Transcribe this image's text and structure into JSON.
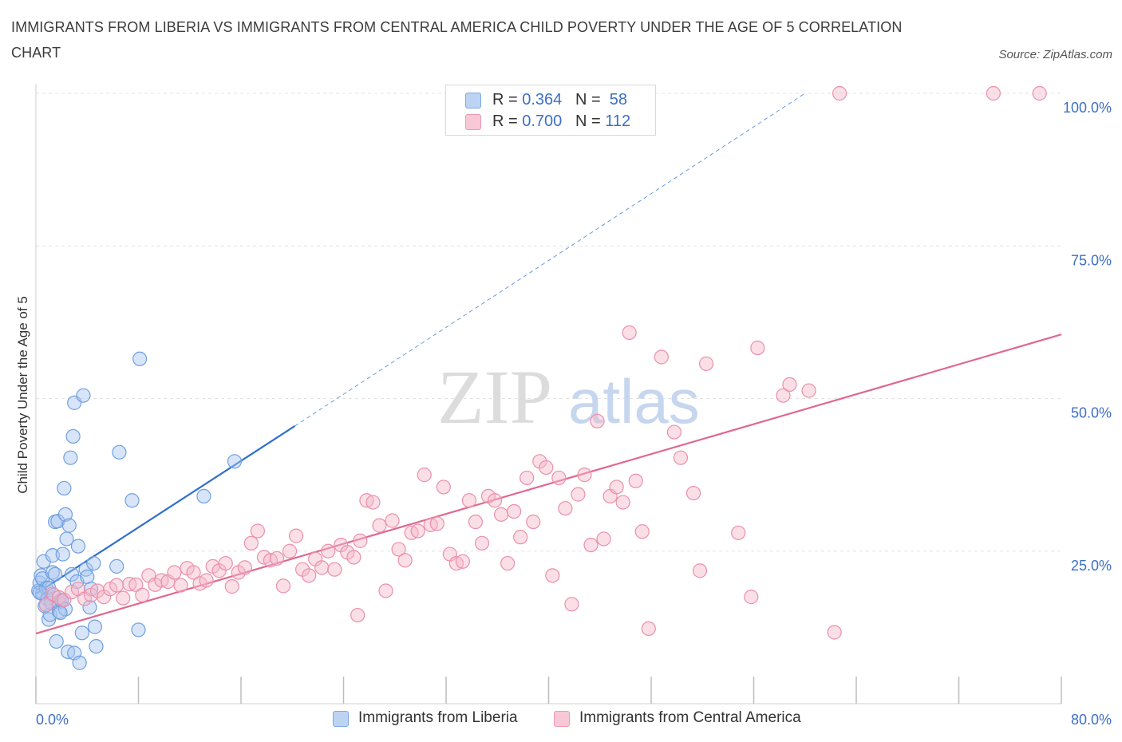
{
  "header": {
    "title": "IMMIGRANTS FROM LIBERIA VS IMMIGRANTS FROM CENTRAL AMERICA CHILD POVERTY UNDER THE AGE OF 5 CORRELATION CHART",
    "source": "Source: ZipAtlas.com"
  },
  "watermark": {
    "zip": "ZIP",
    "atlas": "atlas"
  },
  "legend": {
    "r_label": "R =",
    "n_label": "N =",
    "rows": [
      {
        "series": "Immigrants from Liberia",
        "r": "0.364",
        "n": "58",
        "color": "#a9c6f0"
      },
      {
        "series": "Immigrants from Central America",
        "r": "0.700",
        "n": "112",
        "color": "#f5b7c9"
      }
    ]
  },
  "chart_data": {
    "type": "scatter",
    "title": "IMMIGRANTS FROM LIBERIA VS IMMIGRANTS FROM CENTRAL AMERICA CHILD POVERTY UNDER THE AGE OF 5 CORRELATION CHART",
    "xlabel": "",
    "ylabel": "Child Poverty Under the Age of 5",
    "xlim": [
      0,
      80
    ],
    "ylim": [
      0,
      100
    ],
    "x_tick_labels": [
      "0.0%",
      "80.0%"
    ],
    "y_ticks": [
      25,
      50,
      75,
      100
    ],
    "y_tick_labels": [
      "25.0%",
      "50.0%",
      "75.0%",
      "100.0%"
    ],
    "grid": true,
    "legend_position": "top-center",
    "series": [
      {
        "name": "Immigrants from Liberia",
        "color": "#a9c6f0",
        "stroke": "#6f9fe0",
        "line_color": "#2f6fd0",
        "trend": {
          "x0": 0,
          "y0": 18,
          "x1": 20.2,
          "y1": 45.5,
          "dash_to_x": 60,
          "dash_to_y": 100
        },
        "points": [
          [
            0.2,
            18.5
          ],
          [
            0.3,
            19.8
          ],
          [
            0.4,
            21
          ],
          [
            0.5,
            18
          ],
          [
            0.5,
            20.5
          ],
          [
            0.6,
            23.3
          ],
          [
            0.7,
            16
          ],
          [
            0.8,
            18.9
          ],
          [
            0.9,
            17.2
          ],
          [
            1.0,
            13.8
          ],
          [
            1.0,
            19
          ],
          [
            1.1,
            14.6
          ],
          [
            1.2,
            16.5
          ],
          [
            1.3,
            21.5
          ],
          [
            1.3,
            24.3
          ],
          [
            1.4,
            17.8
          ],
          [
            1.5,
            29.8
          ],
          [
            1.5,
            21.2
          ],
          [
            1.6,
            10.2
          ],
          [
            1.7,
            29.9
          ],
          [
            1.8,
            16.6
          ],
          [
            1.8,
            15.1
          ],
          [
            2.0,
            17
          ],
          [
            2.0,
            16.8
          ],
          [
            2.1,
            24.5
          ],
          [
            2.2,
            35.3
          ],
          [
            2.3,
            15.5
          ],
          [
            2.3,
            31
          ],
          [
            2.4,
            27
          ],
          [
            2.5,
            8.5
          ],
          [
            2.6,
            29.2
          ],
          [
            2.8,
            21.2
          ],
          [
            2.9,
            43.8
          ],
          [
            3.0,
            49.3
          ],
          [
            3.0,
            8.3
          ],
          [
            3.2,
            20
          ],
          [
            3.3,
            25.8
          ],
          [
            3.4,
            6.7
          ],
          [
            3.6,
            11.6
          ],
          [
            3.7,
            50.5
          ],
          [
            3.9,
            22
          ],
          [
            4.0,
            20.8
          ],
          [
            4.2,
            15.8
          ],
          [
            4.3,
            18.8
          ],
          [
            4.5,
            23
          ],
          [
            4.6,
            12.6
          ],
          [
            4.7,
            9.4
          ],
          [
            2.7,
            40.3
          ],
          [
            6.3,
            22.5
          ],
          [
            6.5,
            41.2
          ],
          [
            7.5,
            33.3
          ],
          [
            8.0,
            12.1
          ],
          [
            8.1,
            56.5
          ],
          [
            13.1,
            34
          ],
          [
            15.5,
            39.7
          ],
          [
            1.9,
            14.9
          ],
          [
            0.8,
            16.2
          ],
          [
            0.3,
            18.2
          ]
        ]
      },
      {
        "name": "Immigrants from Central America",
        "color": "#f5b7c9",
        "stroke": "#eb8fab",
        "line_color": "#e06890",
        "trend": {
          "x0": 0,
          "y0": 11.5,
          "x1": 80,
          "y1": 60.5
        },
        "points": [
          [
            0.8,
            16.2
          ],
          [
            1.3,
            18
          ],
          [
            1.8,
            17.4
          ],
          [
            2.2,
            17
          ],
          [
            2.8,
            18.3
          ],
          [
            3.3,
            18.8
          ],
          [
            3.8,
            17.2
          ],
          [
            4.3,
            17.8
          ],
          [
            4.8,
            18.5
          ],
          [
            5.3,
            17.5
          ],
          [
            5.8,
            18.8
          ],
          [
            6.3,
            19.4
          ],
          [
            6.8,
            17.3
          ],
          [
            7.3,
            19.6
          ],
          [
            7.8,
            19.5
          ],
          [
            8.3,
            17.8
          ],
          [
            8.8,
            21
          ],
          [
            9.3,
            19.5
          ],
          [
            9.8,
            20.2
          ],
          [
            10.3,
            20
          ],
          [
            10.8,
            21.5
          ],
          [
            11.3,
            19.4
          ],
          [
            11.8,
            22.2
          ],
          [
            12.3,
            21.5
          ],
          [
            12.8,
            19.7
          ],
          [
            13.3,
            20.2
          ],
          [
            13.8,
            22.5
          ],
          [
            14.3,
            21.8
          ],
          [
            14.8,
            23
          ],
          [
            15.3,
            19.2
          ],
          [
            15.8,
            21.5
          ],
          [
            16.3,
            22.3
          ],
          [
            16.8,
            26.3
          ],
          [
            17.3,
            28.3
          ],
          [
            17.8,
            24
          ],
          [
            18.3,
            23.5
          ],
          [
            18.8,
            23.8
          ],
          [
            19.3,
            19.3
          ],
          [
            19.8,
            25
          ],
          [
            20.3,
            27.5
          ],
          [
            20.8,
            22
          ],
          [
            21.3,
            21
          ],
          [
            21.8,
            23.7
          ],
          [
            22.3,
            22.3
          ],
          [
            22.8,
            25
          ],
          [
            23.3,
            22
          ],
          [
            23.8,
            26
          ],
          [
            24.3,
            24.8
          ],
          [
            24.8,
            24
          ],
          [
            25.3,
            26.7
          ],
          [
            25.8,
            33.3
          ],
          [
            26.3,
            33
          ],
          [
            26.8,
            29.2
          ],
          [
            27.3,
            18.5
          ],
          [
            27.8,
            30
          ],
          [
            28.3,
            25.3
          ],
          [
            28.8,
            23.5
          ],
          [
            29.3,
            28
          ],
          [
            29.8,
            28.3
          ],
          [
            30.3,
            37.5
          ],
          [
            30.8,
            29.3
          ],
          [
            31.3,
            29.5
          ],
          [
            31.8,
            35.5
          ],
          [
            32.3,
            24.5
          ],
          [
            32.8,
            23
          ],
          [
            33.3,
            23.3
          ],
          [
            33.8,
            33.3
          ],
          [
            34.3,
            29.8
          ],
          [
            34.8,
            26.3
          ],
          [
            35.3,
            34
          ],
          [
            35.8,
            33.3
          ],
          [
            36.3,
            31
          ],
          [
            36.8,
            23
          ],
          [
            37.3,
            31.5
          ],
          [
            37.8,
            27.3
          ],
          [
            38.3,
            37
          ],
          [
            38.8,
            29.8
          ],
          [
            39.3,
            39.7
          ],
          [
            39.8,
            38.7
          ],
          [
            40.3,
            21
          ],
          [
            40.8,
            37
          ],
          [
            41.3,
            32
          ],
          [
            41.8,
            16.3
          ],
          [
            42.3,
            34.3
          ],
          [
            42.8,
            37.5
          ],
          [
            43.3,
            26
          ],
          [
            43.8,
            46.3
          ],
          [
            44.3,
            27
          ],
          [
            44.8,
            34
          ],
          [
            45.3,
            35.5
          ],
          [
            45.8,
            33
          ],
          [
            46.3,
            60.8
          ],
          [
            46.8,
            36.5
          ],
          [
            47.3,
            28.2
          ],
          [
            47.8,
            12.3
          ],
          [
            48.8,
            56.8
          ],
          [
            49.8,
            44.5
          ],
          [
            50.3,
            40.3
          ],
          [
            51.3,
            34.5
          ],
          [
            51.8,
            21.8
          ],
          [
            52.3,
            55.7
          ],
          [
            54.8,
            28
          ],
          [
            55.8,
            17.5
          ],
          [
            56.3,
            58.3
          ],
          [
            58.3,
            50.5
          ],
          [
            58.8,
            52.3
          ],
          [
            60.3,
            51.3
          ],
          [
            62.3,
            11.7
          ],
          [
            62.7,
            100
          ],
          [
            74.7,
            100
          ],
          [
            78.3,
            100
          ],
          [
            25.1,
            14.5
          ]
        ]
      }
    ]
  }
}
